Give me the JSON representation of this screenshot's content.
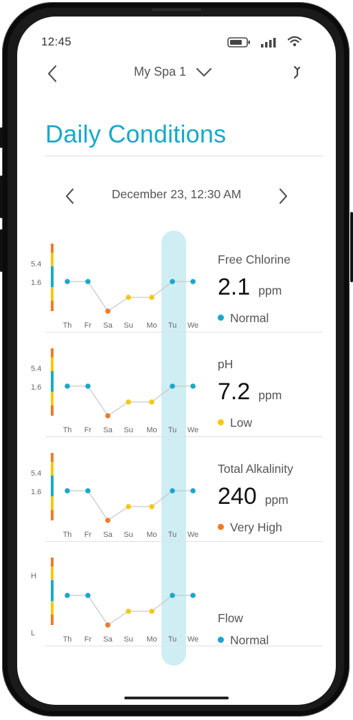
{
  "status_bar": {
    "time": "12:45",
    "icons": [
      "battery-icon",
      "signal-icon",
      "wifi-icon"
    ]
  },
  "header": {
    "title": "My Spa 1",
    "back_icon": "chevron-left-icon",
    "dropdown_icon": "chevron-down-icon",
    "action_icon": "swap-icon"
  },
  "page": {
    "title": "Daily Conditions"
  },
  "date_nav": {
    "label": "December 23, 12:30 AM",
    "prev_icon": "chevron-left-icon",
    "next_icon": "chevron-right-icon"
  },
  "colors": {
    "accent": "#18a9c9",
    "normal": "#18a9c9",
    "low": "#f5c814",
    "very_high": "#ef7b2a",
    "line": "#c8c8c8"
  },
  "days": [
    "Th",
    "Fr",
    "Sa",
    "Su",
    "Mo",
    "Tu",
    "We"
  ],
  "highlighted_day": "Tu",
  "metrics": [
    {
      "name": "Free Chlorine",
      "value": "2.1",
      "unit": "ppm",
      "status": "Normal",
      "status_color": "#18a9c9",
      "scale_labels": [
        "5.4",
        "1.6"
      ],
      "chart_data": {
        "type": "line",
        "x": [
          "Th",
          "Fr",
          "Sa",
          "Su",
          "Mo",
          "Tu",
          "We"
        ],
        "levels": [
          2,
          2,
          0,
          1,
          1,
          2,
          2
        ],
        "point_colors": [
          "#18a9c9",
          "#18a9c9",
          "#ef7b2a",
          "#f5c814",
          "#f5c814",
          "#18a9c9",
          "#18a9c9"
        ]
      }
    },
    {
      "name": "pH",
      "value": "7.2",
      "unit": "ppm",
      "status": "Low",
      "status_color": "#f5c814",
      "scale_labels": [
        "5.4",
        "1.6"
      ],
      "chart_data": {
        "type": "line",
        "x": [
          "Th",
          "Fr",
          "Sa",
          "Su",
          "Mo",
          "Tu",
          "We"
        ],
        "levels": [
          2,
          2,
          0,
          1,
          1,
          2,
          2
        ],
        "point_colors": [
          "#18a9c9",
          "#18a9c9",
          "#ef7b2a",
          "#f5c814",
          "#f5c814",
          "#18a9c9",
          "#18a9c9"
        ]
      }
    },
    {
      "name": "Total Alkalinity",
      "value": "240",
      "unit": "ppm",
      "status": "Very High",
      "status_color": "#ef7b2a",
      "scale_labels": [
        "5.4",
        "1.6"
      ],
      "chart_data": {
        "type": "line",
        "x": [
          "Th",
          "Fr",
          "Sa",
          "Su",
          "Mo",
          "Tu",
          "We"
        ],
        "levels": [
          2,
          2,
          0,
          1,
          1,
          2,
          2
        ],
        "point_colors": [
          "#18a9c9",
          "#18a9c9",
          "#ef7b2a",
          "#f5c814",
          "#f5c814",
          "#18a9c9",
          "#18a9c9"
        ]
      }
    },
    {
      "name": "Flow",
      "value": "",
      "unit": "",
      "status": "Normal",
      "status_color": "#18a9c9",
      "scale_labels": [
        "H",
        "L"
      ],
      "chart_data": {
        "type": "line",
        "x": [
          "Th",
          "Fr",
          "Sa",
          "Su",
          "Mo",
          "Tu",
          "We"
        ],
        "levels": [
          2,
          2,
          0,
          1,
          1,
          2,
          2
        ],
        "point_colors": [
          "#18a9c9",
          "#18a9c9",
          "#ef7b2a",
          "#f5c814",
          "#f5c814",
          "#18a9c9",
          "#18a9c9"
        ]
      }
    }
  ]
}
